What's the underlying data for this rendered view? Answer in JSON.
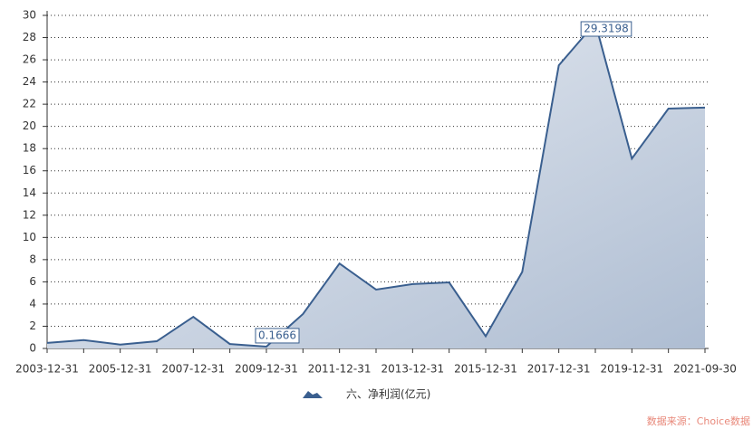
{
  "chart_data": {
    "type": "area",
    "categories": [
      "2003-12-31",
      null,
      "2005-12-31",
      null,
      "2007-12-31",
      null,
      "2009-12-31",
      null,
      "2011-12-31",
      null,
      "2013-12-31",
      null,
      "2015-12-31",
      null,
      "2017-12-31",
      null,
      "2019-12-31",
      null,
      "2021-09-30"
    ],
    "series": [
      {
        "name": "六、净利润(亿元)",
        "color": "#3a5f8f",
        "values": [
          0.5,
          0.75,
          0.35,
          0.65,
          2.85,
          0.4,
          0.1666,
          3.1,
          7.65,
          5.3,
          5.8,
          5.95,
          1.1,
          6.9,
          25.5,
          29.3198,
          17.1,
          21.6,
          21.7
        ]
      }
    ],
    "ylim": [
      0,
      30
    ],
    "yticks": [
      0,
      2,
      4,
      6,
      8,
      10,
      12,
      14,
      16,
      18,
      20,
      22,
      24,
      26,
      28,
      30
    ],
    "grid": true,
    "source": "数据来源：Choice数据"
  }
}
